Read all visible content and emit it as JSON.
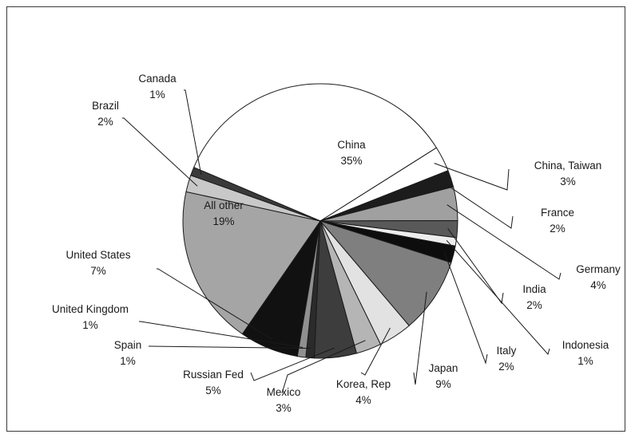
{
  "chart_data": {
    "type": "pie",
    "title": "",
    "start_angle_deg": -67,
    "direction": "clockwise",
    "slices": [
      {
        "label": "China",
        "pct_label": "35%",
        "value": 35,
        "color": "#ffffff",
        "text_color": "#1a1a1a"
      },
      {
        "label": "China, Taiwan",
        "pct_label": "3%",
        "value": 3,
        "color": "#ffffff"
      },
      {
        "label": "France",
        "pct_label": "2%",
        "value": 2,
        "color": "#1c1c1c"
      },
      {
        "label": "Germany",
        "pct_label": "4%",
        "value": 4,
        "color": "#a0a0a0"
      },
      {
        "label": "India",
        "pct_label": "2%",
        "value": 2,
        "color": "#595959"
      },
      {
        "label": "Indonesia",
        "pct_label": "1%",
        "value": 1,
        "color": "#ededed"
      },
      {
        "label": "Italy",
        "pct_label": "2%",
        "value": 2,
        "color": "#0d0d0d"
      },
      {
        "label": "Japan",
        "pct_label": "9%",
        "value": 9,
        "color": "#7f7f7f"
      },
      {
        "label": "Korea, Rep",
        "pct_label": "4%",
        "value": 4,
        "color": "#e2e2e2"
      },
      {
        "label": "Mexico",
        "pct_label": "3%",
        "value": 3,
        "color": "#b5b5b5"
      },
      {
        "label": "Russian Fed",
        "pct_label": "5%",
        "value": 5,
        "color": "#3d3d3d"
      },
      {
        "label": "Spain",
        "pct_label": "1%",
        "value": 1,
        "color": "#2b2b2b"
      },
      {
        "label": "United Kingdom",
        "pct_label": "1%",
        "value": 1,
        "color": "#909090"
      },
      {
        "label": "United States",
        "pct_label": "7%",
        "value": 7,
        "color": "#111111"
      },
      {
        "label": "All other",
        "pct_label": "19%",
        "value": 19,
        "color": "#a5a5a5",
        "text_color": "#1a1a1a"
      },
      {
        "label": "Brazil",
        "pct_label": "2%",
        "value": 2,
        "color": "#c8c8c8"
      },
      {
        "label": "Canada",
        "pct_label": "1%",
        "value": 1,
        "color": "#3a3a3a"
      }
    ]
  }
}
